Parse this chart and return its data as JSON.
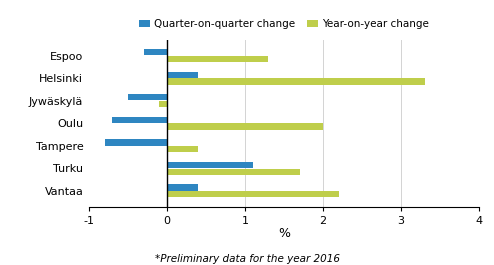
{
  "cities": [
    "Espoo",
    "Helsinki",
    "Jywäskylä",
    "Oulu",
    "Tampere",
    "Turku",
    "Vantaa"
  ],
  "qoq": [
    -0.3,
    0.4,
    -0.5,
    -0.7,
    -0.8,
    1.1,
    0.4
  ],
  "yoy": [
    1.3,
    3.3,
    -0.1,
    2.0,
    0.4,
    1.7,
    2.2
  ],
  "qoq_color": "#2E86C1",
  "yoy_color": "#BFCE4B",
  "xlim": [
    -1,
    4
  ],
  "xticks": [
    -1,
    0,
    1,
    2,
    3,
    4
  ],
  "xlabel": "%",
  "legend_labels": [
    "Quarter-on-quarter change",
    "Year-on-year change"
  ],
  "footnote": "*Preliminary data for the year 2016",
  "bar_height": 0.28,
  "bar_gap": 0.02,
  "background_color": "#ffffff"
}
